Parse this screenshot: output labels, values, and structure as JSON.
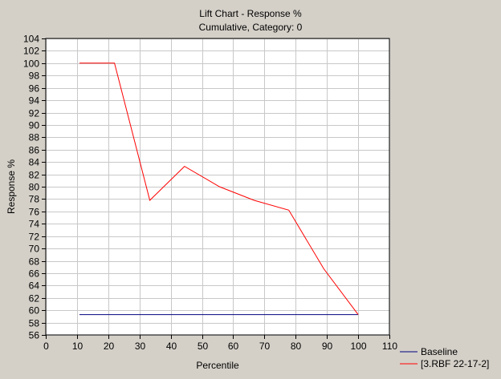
{
  "chart_data": {
    "type": "line",
    "title": "Lift Chart - Response %",
    "subtitle": "Cumulative, Category: 0",
    "xlabel": "Percentile",
    "ylabel": "Response %",
    "xlim": [
      0,
      110
    ],
    "ylim": [
      56,
      104
    ],
    "xticks": [
      0,
      10,
      20,
      30,
      40,
      50,
      60,
      70,
      80,
      90,
      100,
      110
    ],
    "yticks": [
      56,
      58,
      60,
      62,
      64,
      66,
      68,
      70,
      72,
      74,
      76,
      78,
      80,
      82,
      84,
      86,
      88,
      90,
      92,
      94,
      96,
      98,
      100,
      102,
      104
    ],
    "grid": true,
    "legend_position": "bottom-right",
    "series": [
      {
        "name": "Baseline",
        "color": "#000080",
        "x": [
          10.8,
          100
        ],
        "y": [
          59.3,
          59.3
        ]
      },
      {
        "name": "[3.RBF 22-17-2]",
        "color": "#ff0000",
        "x": [
          10.8,
          22,
          33.3,
          44.4,
          55.6,
          66.7,
          77.8,
          89,
          100
        ],
        "y": [
          100,
          100,
          77.8,
          83.3,
          80,
          77.8,
          76.2,
          66.7,
          59.3
        ]
      }
    ]
  }
}
